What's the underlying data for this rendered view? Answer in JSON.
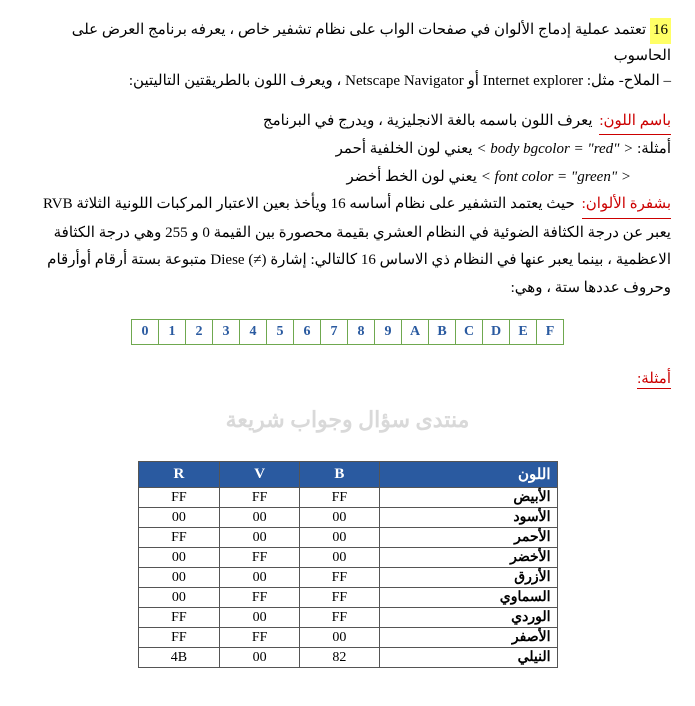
{
  "intro": {
    "number": "16",
    "line1": "تعتمد عملية إدماج الألوان في صفحات الواب على نظام تشفير خاص ، يعرفه برنامج العرض على الحاسوب",
    "line2_a": "– الملاح- مثل: ",
    "browser1": "Internet explorer",
    "or": " أو ",
    "browser2": "Netscape Navigator",
    "line2_b": " ، ويعرف اللون بالطريقتين التاليتين:"
  },
  "byname": {
    "title": "باسم اللون:",
    "desc": " يعرف اللون باسمه بالغة الانجليزية ، ويدرج في البرنامج",
    "ex_label": "أمثلة: ",
    "code1": "< body bgcolor = \"red\" >",
    "code1_desc": " يعني لون الخلفية أحمر",
    "code2": "< font color = \"green\" >",
    "code2_desc": " يعني لون الخط أخضر"
  },
  "bycode": {
    "title": "بشفرة الألوان:",
    "p1_a": " حيث يعتمد التشفير على نظام أساسه 16 ويأخذ بعين الاعتبار المركبات اللونية الثلاثة ",
    "rvb": "RVB",
    "p2": "يعبر عن درجة الكثافة الضوئية في النظام العشري بقيمة محصورة بين القيمة 0 و 255 وهي درجة الكثافة",
    "p3_a": "الاعظمية ، بينما يعبر عنها في النظام ذي الاساس 16 كالتالي: إشارة ",
    "diese": "Diese (≠)",
    "p3_b": " متبوعة بستة أرقام أوأرقام",
    "p4": "وحروف عددها ستة ، وهي:"
  },
  "hex_digits": [
    "0",
    "1",
    "2",
    "3",
    "4",
    "5",
    "6",
    "7",
    "8",
    "9",
    "A",
    "B",
    "C",
    "D",
    "E",
    "F"
  ],
  "examples_label": "أمثلة:",
  "watermark": "منتدى سؤال وجواب شريعة",
  "color_table": {
    "headers": {
      "r": "R",
      "v": "V",
      "b": "B",
      "name": "اللون"
    },
    "rows": [
      {
        "r": "FF",
        "v": "FF",
        "b": "FF",
        "name": "الأبيض"
      },
      {
        "r": "00",
        "v": "00",
        "b": "00",
        "name": "الأسود"
      },
      {
        "r": "FF",
        "v": "00",
        "b": "00",
        "name": "الأحمر"
      },
      {
        "r": "00",
        "v": "FF",
        "b": "00",
        "name": "الأخضر"
      },
      {
        "r": "00",
        "v": "00",
        "b": "FF",
        "name": "الأزرق"
      },
      {
        "r": "00",
        "v": "FF",
        "b": "FF",
        "name": "السماوي"
      },
      {
        "r": "FF",
        "v": "00",
        "b": "FF",
        "name": "الوردي"
      },
      {
        "r": "FF",
        "v": "FF",
        "b": "00",
        "name": "الأصفر"
      },
      {
        "r": "4B",
        "v": "00",
        "b": "82",
        "name": "النيلي"
      }
    ]
  }
}
